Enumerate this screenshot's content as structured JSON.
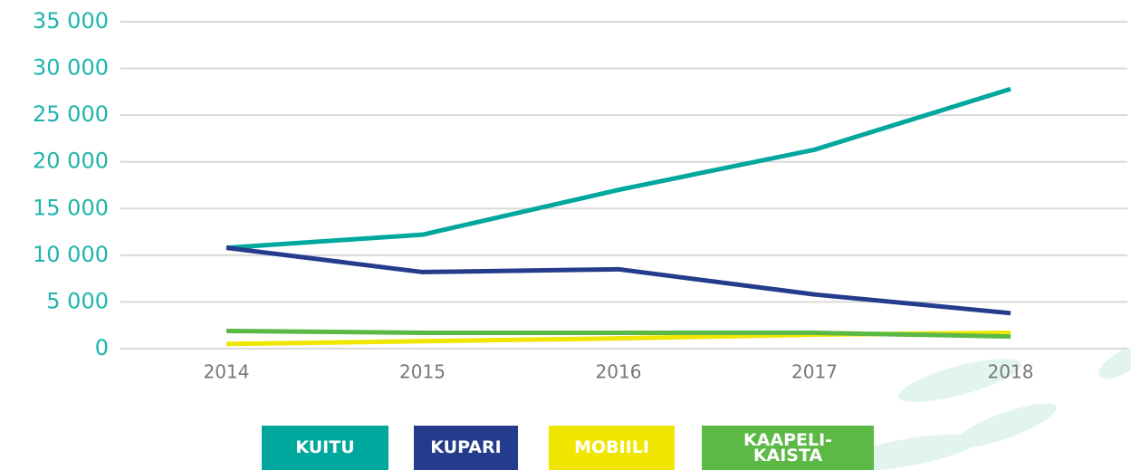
{
  "chart_data": {
    "type": "line",
    "categories": [
      "2014",
      "2015",
      "2016",
      "2017",
      "2018"
    ],
    "series": [
      {
        "name": "KUITU",
        "color": "#00a79d",
        "values": [
          10800,
          12200,
          17000,
          21300,
          27800
        ]
      },
      {
        "name": "KUPARI",
        "color": "#253c8c",
        "values": [
          10800,
          8200,
          8500,
          5800,
          3800
        ]
      },
      {
        "name": "MOBIILI",
        "color": "#f0e600",
        "values": [
          500,
          800,
          1100,
          1500,
          1700
        ]
      },
      {
        "name": "KAAPELI-KAISTA",
        "color": "#5cb946",
        "values": [
          1900,
          1700,
          1700,
          1700,
          1300
        ]
      }
    ],
    "ylim": [
      0,
      35000
    ],
    "yticks": [
      0,
      {
        "value": 5000,
        "label": "5 000"
      },
      {
        "value": 10000,
        "label": "10 000"
      },
      {
        "value": 15000,
        "label": "15 000"
      },
      {
        "value": 20000,
        "label": "20 000"
      },
      {
        "value": 25000,
        "label": "25 000"
      },
      {
        "value": 30000,
        "label": "30 000"
      },
      {
        "value": 35000,
        "label": "35 000"
      }
    ],
    "grid": true
  }
}
